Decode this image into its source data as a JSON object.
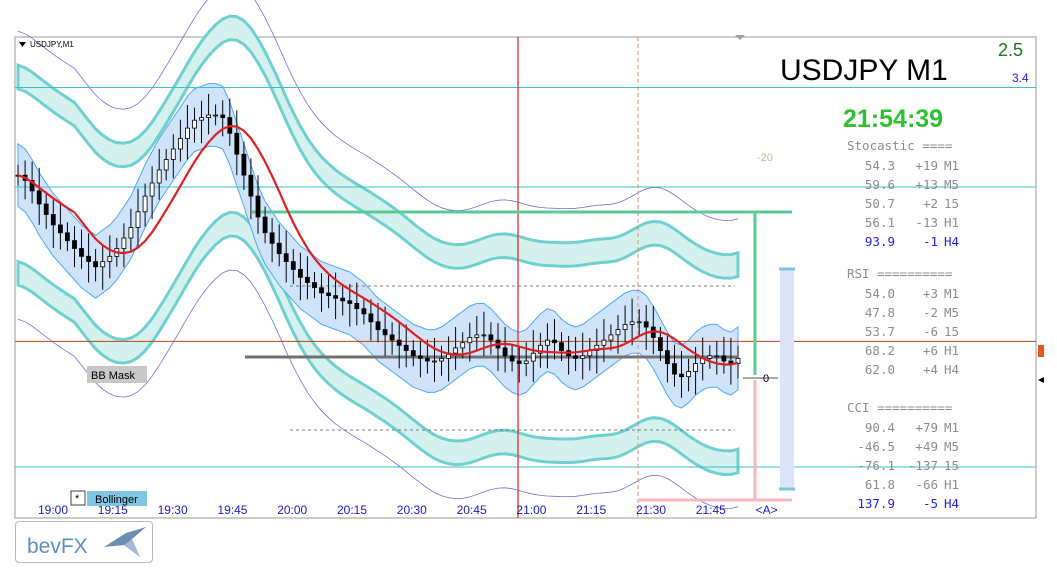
{
  "chart_data": {
    "type": "candlestick",
    "symbol_label": "USDJPY,M1",
    "title": "USDJPY  M1",
    "clock": "21:54:39",
    "stat_top": "2.5",
    "stat_bottom": "3.4",
    "x_ticks": [
      "19:00",
      "19:15",
      "19:30",
      "19:45",
      "20:00",
      "20:15",
      "20:30",
      "20:45",
      "21:00",
      "21:15",
      "21:30",
      "21:45",
      "<A>"
    ],
    "minute_series_start": "19:00",
    "close_series": [
      0.66,
      0.64,
      0.6,
      0.55,
      0.51,
      0.47,
      0.44,
      0.41,
      0.38,
      0.35,
      0.33,
      0.31,
      0.33,
      0.35,
      0.38,
      0.42,
      0.46,
      0.52,
      0.58,
      0.63,
      0.68,
      0.72,
      0.76,
      0.8,
      0.84,
      0.87,
      0.88,
      0.89,
      0.89,
      0.88,
      0.82,
      0.74,
      0.66,
      0.58,
      0.5,
      0.44,
      0.4,
      0.36,
      0.33,
      0.3,
      0.27,
      0.25,
      0.23,
      0.21,
      0.2,
      0.19,
      0.18,
      0.17,
      0.15,
      0.13,
      0.1,
      0.07,
      0.05,
      0.03,
      0.01,
      -0.01,
      -0.03,
      -0.04,
      -0.05,
      -0.05,
      -0.04,
      -0.02,
      0.0,
      0.02,
      0.04,
      0.05,
      0.05,
      0.03,
      0.0,
      -0.03,
      -0.05,
      -0.06,
      -0.05,
      -0.02,
      0.01,
      0.03,
      0.02,
      -0.01,
      -0.03,
      -0.04,
      -0.03,
      -0.01,
      0.01,
      0.03,
      0.05,
      0.07,
      0.09,
      0.1,
      0.1,
      0.08,
      0.04,
      -0.01,
      -0.06,
      -0.1,
      -0.11,
      -0.09,
      -0.06,
      -0.04,
      -0.03,
      -0.03,
      -0.05,
      -0.06,
      -0.04
    ],
    "ma_color": "#e02020",
    "band_color": "#4da6ff",
    "outer_band_color": "#70d0d0",
    "horizontal_levels": [
      {
        "price": 0.995,
        "color": "#3cc0c8"
      },
      {
        "price": 0.615,
        "color": "#3cc0c8"
      },
      {
        "price": 0.025,
        "color": "#c0401a"
      },
      {
        "price": -0.455,
        "color": "#3cc0c8"
      }
    ],
    "stochastic": {
      "header": "Stocastic ====",
      "rows": [
        {
          "value": "54.3",
          "change": "+19",
          "tf": "M1"
        },
        {
          "value": "59.6",
          "change": "+13",
          "tf": "M5"
        },
        {
          "value": "50.7",
          "change": "+2",
          "tf": "15"
        },
        {
          "value": "56.1",
          "change": "-13",
          "tf": "H1"
        },
        {
          "value": "93.9",
          "change": "-1",
          "tf": "H4",
          "highlight": true
        }
      ]
    },
    "rsi": {
      "header": "RSI ==========",
      "rows": [
        {
          "value": "54.0",
          "change": "+3",
          "tf": "M1"
        },
        {
          "value": "47.8",
          "change": "-2",
          "tf": "M5"
        },
        {
          "value": "53.7",
          "change": "-6",
          "tf": "15"
        },
        {
          "value": "68.2",
          "change": "+6",
          "tf": "H1"
        },
        {
          "value": "62.0",
          "change": "+4",
          "tf": "H4"
        }
      ]
    },
    "cci": {
      "header": "CCI ==========",
      "rows": [
        {
          "value": "90.4",
          "change": "+79",
          "tf": "M1"
        },
        {
          "value": "-46.5",
          "change": "+49",
          "tf": "M5"
        },
        {
          "value": "-76.1",
          "change": "-137",
          "tf": "15"
        },
        {
          "value": "61.8",
          "change": "-66",
          "tf": "H1"
        },
        {
          "value": "137.9",
          "change": "-5",
          "tf": "H4",
          "highlight": true
        }
      ]
    },
    "labels": {
      "bb_mask": "BB Mask",
      "bollinger": "Bollinger",
      "bollinger_marker": "*",
      "small_mark": "-20",
      "zero_mark": "0"
    }
  },
  "logo": {
    "text": "bevFX"
  }
}
